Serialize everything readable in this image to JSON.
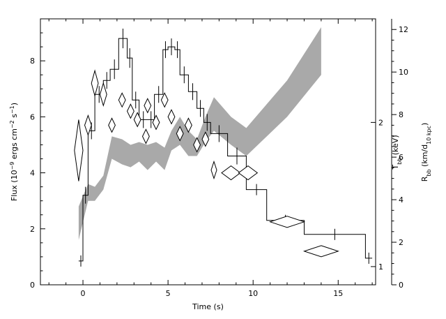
{
  "chart_data": {
    "type": "scatter",
    "xlabel": "Time (s)",
    "ylabel": "Flux (10^-9 ergs cm^-2 s^-1)",
    "ylabel_parts": {
      "pre": "Flux (10",
      "sup1": "−9",
      "mid": " ergs cm",
      "sup2": "−2",
      "mid2": " s",
      "sup3": "−1",
      "post": ")"
    },
    "y2label_T": {
      "base": "T",
      "sub": "bb",
      "post": " (keV)"
    },
    "y2label_R": {
      "base": "R",
      "sub": "bb",
      "mid": " (km/d",
      "sub2": "10 kpc",
      "post": ")"
    },
    "xlim": [
      -2.5,
      17.2
    ],
    "ylim": [
      0,
      9.5
    ],
    "grid": false,
    "xticks": [
      0,
      5,
      10,
      15
    ],
    "yticks": [
      0,
      2,
      4,
      6,
      8
    ],
    "T_axis": {
      "ticks": [
        1,
        2
      ],
      "flux_positions": [
        0.65,
        5.8
      ]
    },
    "R_axis": {
      "ticks": [
        0,
        2,
        4,
        6,
        8,
        10,
        12
      ],
      "scale": 0.76
    },
    "flux_histogram": {
      "edges": [
        -0.25,
        0.0,
        0.3,
        0.7,
        1.2,
        1.6,
        2.1,
        2.6,
        2.9,
        3.3,
        3.8,
        4.2,
        4.7,
        5.0,
        5.4,
        5.7,
        6.2,
        6.7,
        7.1,
        7.5,
        8.5,
        9.6,
        10.8,
        13.0,
        16.6,
        17.0
      ],
      "values": [
        0.85,
        3.2,
        5.5,
        6.8,
        7.3,
        7.7,
        8.8,
        8.1,
        6.6,
        5.9,
        5.9,
        6.8,
        8.4,
        8.5,
        8.4,
        7.5,
        6.9,
        6.3,
        5.8,
        5.4,
        4.6,
        3.4,
        2.3,
        1.8,
        0.95
      ],
      "errors": [
        0.2,
        0.3,
        0.3,
        0.3,
        0.3,
        0.35,
        0.35,
        0.35,
        0.3,
        0.3,
        0.3,
        0.3,
        0.3,
        0.3,
        0.3,
        0.3,
        0.3,
        0.3,
        0.3,
        0.3,
        0.3,
        0.2,
        0.2,
        0.2,
        0.2
      ]
    },
    "temperature_diamonds": [
      {
        "x": -0.25,
        "y": 4.8,
        "xerr": 0.25,
        "yerr": 1.1
      },
      {
        "x": 0.3,
        "y": 5.7,
        "xerr": 0.2,
        "yerr": 0.35
      },
      {
        "x": 0.7,
        "y": 7.2,
        "xerr": 0.2,
        "yerr": 0.45
      },
      {
        "x": 1.2,
        "y": 6.8,
        "xerr": 0.2,
        "yerr": 0.4
      },
      {
        "x": 1.7,
        "y": 5.7,
        "xerr": 0.2,
        "yerr": 0.25
      },
      {
        "x": 2.3,
        "y": 6.6,
        "xerr": 0.2,
        "yerr": 0.25
      },
      {
        "x": 2.8,
        "y": 6.2,
        "xerr": 0.2,
        "yerr": 0.25
      },
      {
        "x": 3.2,
        "y": 5.9,
        "xerr": 0.2,
        "yerr": 0.25
      },
      {
        "x": 3.7,
        "y": 5.3,
        "xerr": 0.2,
        "yerr": 0.25
      },
      {
        "x": 3.8,
        "y": 6.4,
        "xerr": 0.2,
        "yerr": 0.25
      },
      {
        "x": 4.3,
        "y": 5.8,
        "xerr": 0.2,
        "yerr": 0.25
      },
      {
        "x": 4.8,
        "y": 6.6,
        "xerr": 0.2,
        "yerr": 0.25
      },
      {
        "x": 5.2,
        "y": 6.0,
        "xerr": 0.2,
        "yerr": 0.25
      },
      {
        "x": 5.7,
        "y": 5.4,
        "xerr": 0.2,
        "yerr": 0.25
      },
      {
        "x": 6.2,
        "y": 5.7,
        "xerr": 0.2,
        "yerr": 0.25
      },
      {
        "x": 6.7,
        "y": 5.0,
        "xerr": 0.2,
        "yerr": 0.25
      },
      {
        "x": 7.2,
        "y": 5.2,
        "xerr": 0.2,
        "yerr": 0.25
      },
      {
        "x": 7.7,
        "y": 4.1,
        "xerr": 0.15,
        "yerr": 0.3
      },
      {
        "x": 8.7,
        "y": 4.0,
        "xerr": 0.55,
        "yerr": 0.25
      },
      {
        "x": 9.7,
        "y": 4.0,
        "xerr": 0.55,
        "yerr": 0.25
      },
      {
        "x": 12.0,
        "y": 2.25,
        "xerr": 1.0,
        "yerr": 0.2
      },
      {
        "x": 14.0,
        "y": 1.2,
        "xerr": 1.0,
        "yerr": 0.2
      }
    ],
    "radius_band": {
      "x": [
        -0.25,
        0.3,
        0.7,
        1.2,
        1.7,
        2.3,
        2.8,
        3.3,
        3.8,
        4.3,
        4.8,
        5.2,
        5.7,
        6.2,
        6.7,
        7.2,
        7.7,
        8.7,
        9.6,
        12.0,
        14.0
      ],
      "upper": [
        2.8,
        3.6,
        3.5,
        3.9,
        5.3,
        5.2,
        5.0,
        5.1,
        5.0,
        5.1,
        4.9,
        5.5,
        6.0,
        5.5,
        5.2,
        6.0,
        6.7,
        6.0,
        5.6,
        7.3,
        9.2
      ],
      "lower": [
        1.6,
        3.0,
        3.0,
        3.4,
        4.5,
        4.3,
        4.2,
        4.4,
        4.1,
        4.4,
        4.1,
        4.8,
        5.0,
        4.6,
        4.6,
        5.1,
        5.5,
        5.0,
        4.6,
        6.0,
        7.5
      ]
    }
  }
}
